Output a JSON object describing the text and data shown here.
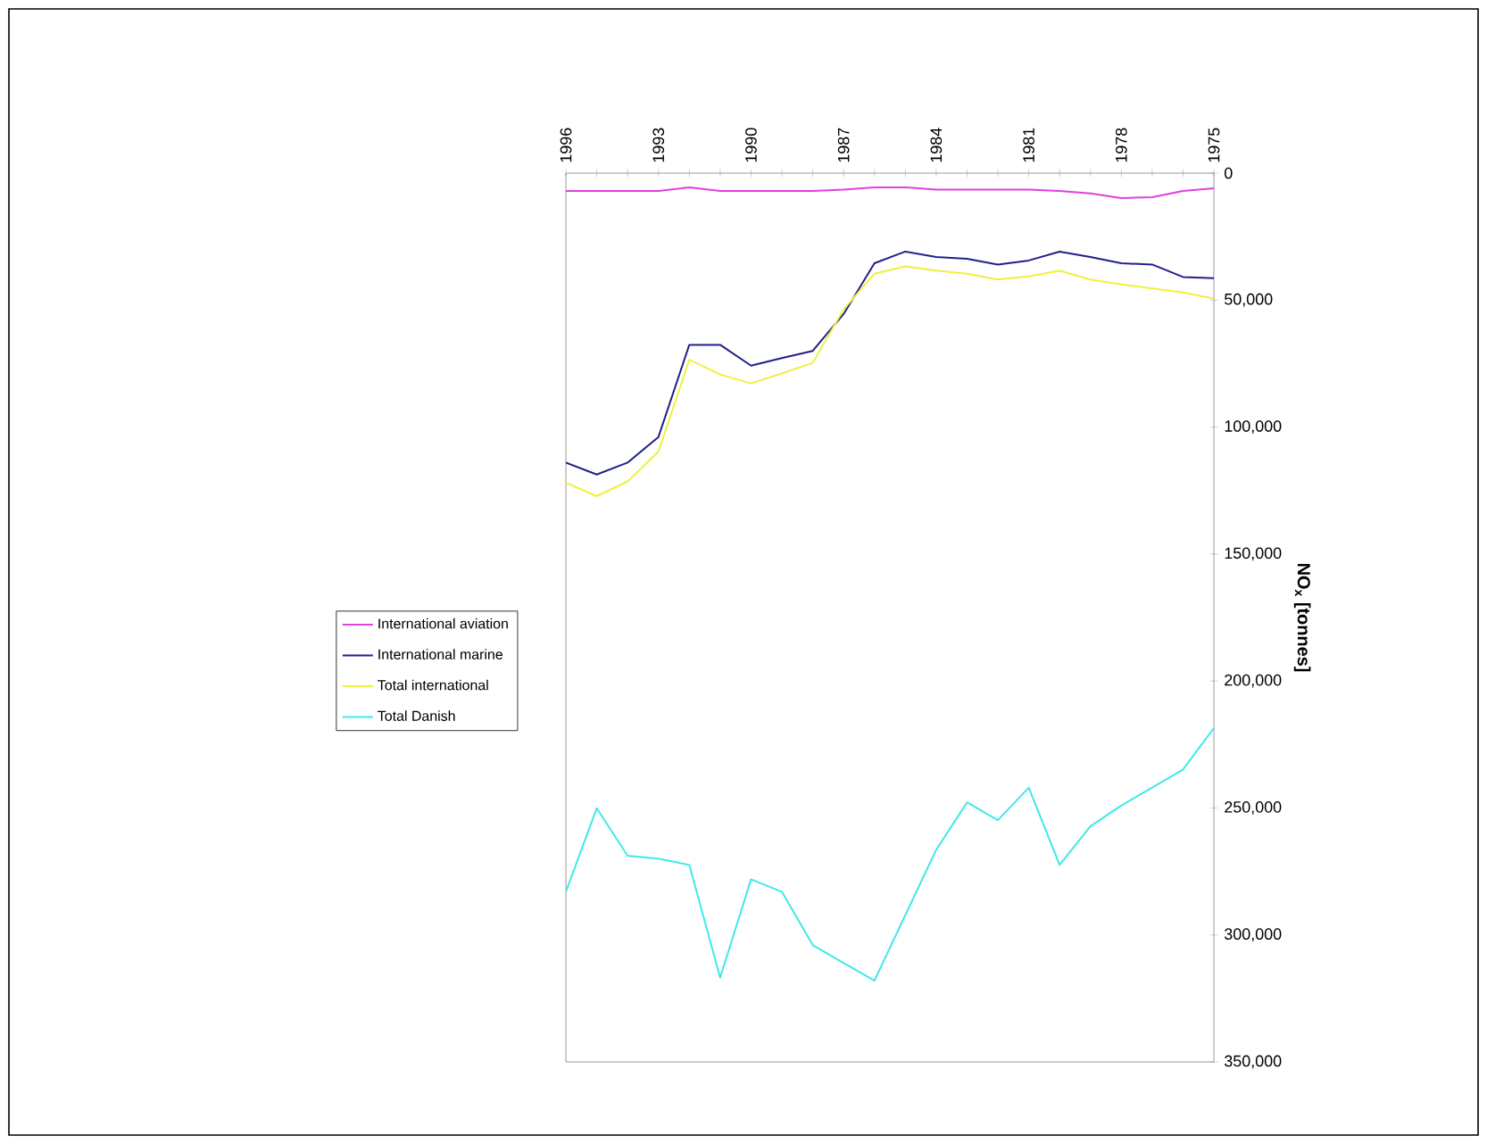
{
  "chart_data": {
    "type": "line",
    "ylabel": "NO$_{x}$ [tonnes]",
    "categories": [
      "1996",
      null,
      null,
      "1993",
      null,
      null,
      "1990",
      null,
      null,
      "1987",
      null,
      null,
      "1984",
      null,
      null,
      "1981",
      null,
      null,
      "1978",
      null,
      null,
      "1975"
    ],
    "series": [
      {
        "name": "International aviation",
        "color": "#e040e0",
        "values": [
          7000,
          7000,
          7000,
          7000,
          5600,
          7000,
          7000,
          7000,
          7000,
          6500,
          5600,
          5600,
          6500,
          6500,
          6500,
          6500,
          7000,
          8000,
          9800,
          9500,
          7000,
          6000
        ]
      },
      {
        "name": "International marine",
        "color": "#20208a",
        "values": [
          114000,
          118700,
          114000,
          103900,
          67600,
          67600,
          75800,
          72800,
          70000,
          55500,
          35500,
          30900,
          33000,
          33700,
          36000,
          34400,
          30900,
          33000,
          35500,
          36000,
          40900,
          41400
        ]
      },
      {
        "name": "Total international",
        "color": "#f0f040",
        "values": [
          121900,
          127200,
          121400,
          109700,
          73500,
          79300,
          82800,
          78900,
          74700,
          53700,
          39600,
          36700,
          38400,
          39600,
          41900,
          40700,
          38400,
          41900,
          43800,
          45400,
          47000,
          49400
        ]
      },
      {
        "name": "Total Danish",
        "color": "#40e8e8",
        "values": [
          283000,
          250100,
          268800,
          270000,
          272400,
          316800,
          278100,
          283000,
          304000,
          311000,
          318000,
          292200,
          266500,
          247800,
          254800,
          242000,
          272400,
          257200,
          249000,
          242000,
          234900,
          218500
        ]
      }
    ],
    "ylim": [
      350000,
      0
    ],
    "yticks": [
      0,
      {
        "value": 50000,
        "label": "50,000"
      },
      {
        "value": 100000,
        "label": "100,000"
      },
      {
        "value": 150000,
        "label": "150,000"
      },
      {
        "value": 200000,
        "label": "200,000"
      },
      {
        "value": 250000,
        "label": "250,000"
      },
      {
        "value": 300000,
        "label": "300,000"
      },
      {
        "value": 350000,
        "label": "350,000"
      }
    ],
    "legend": "left",
    "grid": false,
    "marker": "none",
    "line_style": "solid"
  }
}
